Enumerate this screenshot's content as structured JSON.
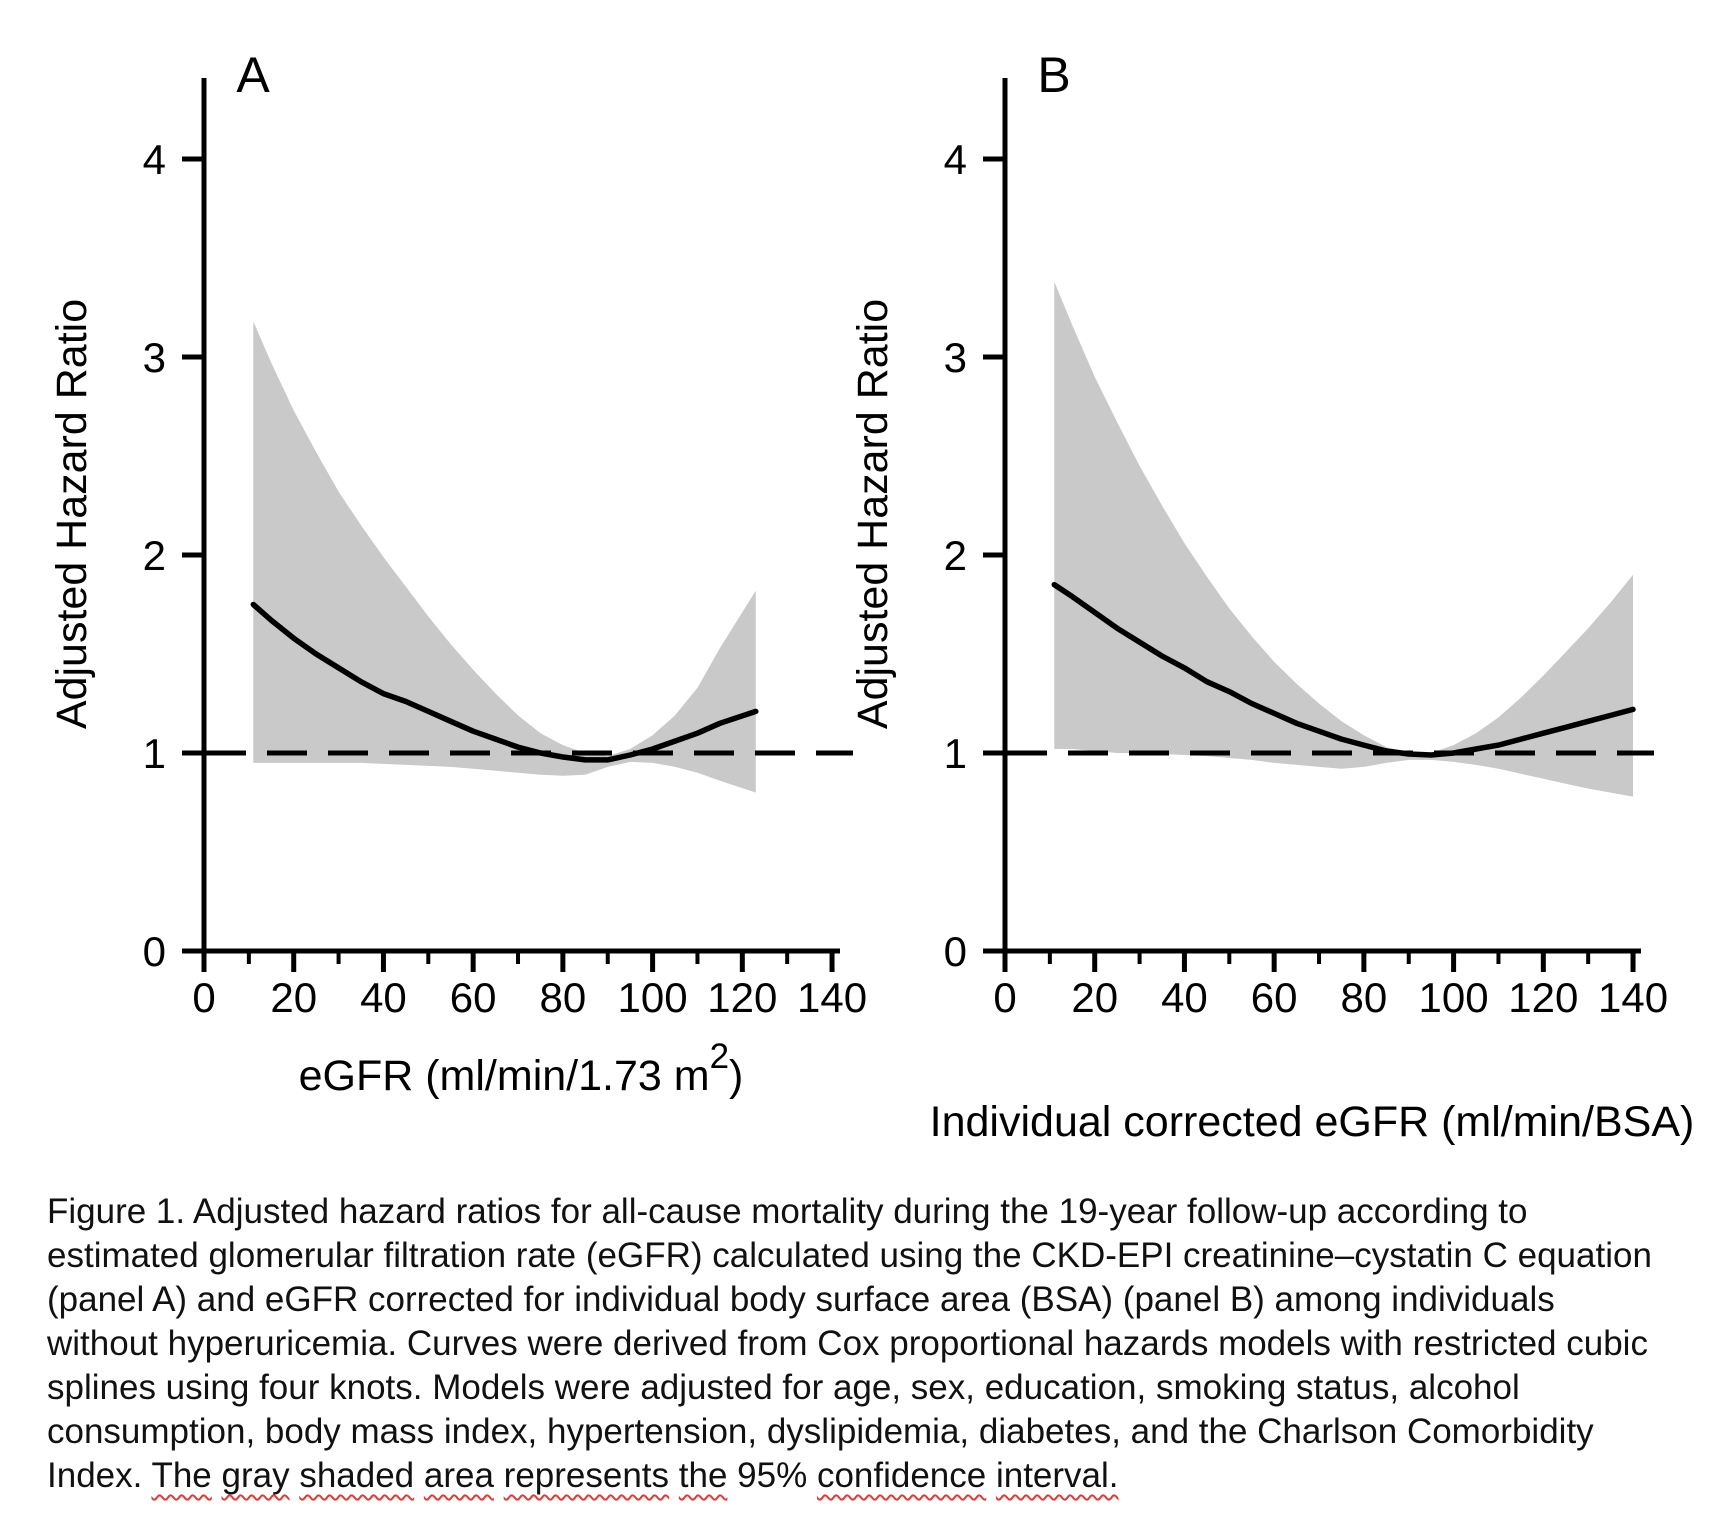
{
  "figure": {
    "band_color": "#c9c9c9",
    "line_color": "#000000",
    "background": "#ffffff"
  },
  "chart_data": [
    {
      "type": "line",
      "panel_label": "A",
      "title": "A",
      "ylabel": "Adjusted Hazard Ratio",
      "xlabel": {
        "pre": "eGFR (ml/min/1.73 m",
        "sup": "2",
        "post": ")"
      },
      "xlim": [
        0,
        145
      ],
      "ylim": [
        0,
        4.4
      ],
      "xticks_major": [
        0,
        20,
        40,
        60,
        80,
        100,
        120,
        140
      ],
      "xticks_minor": [
        10,
        30,
        50,
        70,
        90,
        110,
        130
      ],
      "yticks": [
        0,
        1,
        2,
        3,
        4
      ],
      "ref_line": 1,
      "legend": "none",
      "grid": false,
      "band_meaning": "95% confidence interval",
      "series": {
        "x": [
          11,
          15,
          20,
          25,
          30,
          35,
          40,
          45,
          50,
          55,
          60,
          65,
          70,
          75,
          80,
          85,
          90,
          95,
          100,
          105,
          110,
          115,
          123
        ],
        "hr": [
          1.75,
          1.67,
          1.58,
          1.5,
          1.43,
          1.36,
          1.3,
          1.26,
          1.21,
          1.16,
          1.11,
          1.07,
          1.03,
          1.0,
          0.98,
          0.965,
          0.965,
          0.99,
          1.02,
          1.06,
          1.1,
          1.15,
          1.21
        ],
        "upper": [
          3.18,
          2.97,
          2.73,
          2.52,
          2.32,
          2.15,
          1.99,
          1.84,
          1.69,
          1.55,
          1.42,
          1.3,
          1.19,
          1.1,
          1.04,
          1.0,
          0.985,
          1.02,
          1.09,
          1.19,
          1.33,
          1.53,
          1.82
        ],
        "lower": [
          0.95,
          0.95,
          0.95,
          0.95,
          0.95,
          0.95,
          0.945,
          0.94,
          0.935,
          0.93,
          0.92,
          0.91,
          0.9,
          0.89,
          0.885,
          0.89,
          0.93,
          0.955,
          0.95,
          0.93,
          0.9,
          0.86,
          0.8
        ]
      }
    },
    {
      "type": "line",
      "panel_label": "B",
      "title": "B",
      "ylabel": "Adjusted Hazard Ratio",
      "xlabel": {
        "pre": "Individual corrected eGFR (ml/min/BSA)",
        "sup": "",
        "post": ""
      },
      "xlim": [
        0,
        145
      ],
      "ylim": [
        0,
        4.4
      ],
      "xticks_major": [
        0,
        20,
        40,
        60,
        80,
        100,
        120,
        140
      ],
      "xticks_minor": [
        10,
        30,
        50,
        70,
        90,
        110,
        130
      ],
      "yticks": [
        0,
        1,
        2,
        3,
        4
      ],
      "ref_line": 1,
      "legend": "none",
      "grid": false,
      "band_meaning": "95% confidence interval",
      "series": {
        "x": [
          11,
          15,
          20,
          25,
          30,
          35,
          40,
          45,
          50,
          55,
          60,
          65,
          70,
          75,
          80,
          85,
          90,
          95,
          100,
          105,
          110,
          115,
          120,
          125,
          130,
          135,
          140
        ],
        "hr": [
          1.85,
          1.79,
          1.71,
          1.63,
          1.56,
          1.49,
          1.43,
          1.36,
          1.31,
          1.25,
          1.2,
          1.15,
          1.11,
          1.07,
          1.04,
          1.01,
          0.995,
          0.99,
          1.0,
          1.02,
          1.04,
          1.07,
          1.1,
          1.13,
          1.16,
          1.19,
          1.22
        ],
        "upper": [
          3.38,
          3.16,
          2.9,
          2.67,
          2.45,
          2.25,
          2.06,
          1.89,
          1.73,
          1.59,
          1.46,
          1.35,
          1.25,
          1.16,
          1.09,
          1.03,
          1.0,
          1.0,
          1.04,
          1.1,
          1.18,
          1.28,
          1.39,
          1.51,
          1.63,
          1.76,
          1.9
        ],
        "lower": [
          1.02,
          1.02,
          1.01,
          1.0,
          1.0,
          0.995,
          0.99,
          0.985,
          0.975,
          0.965,
          0.95,
          0.94,
          0.93,
          0.92,
          0.93,
          0.95,
          0.965,
          0.965,
          0.955,
          0.94,
          0.92,
          0.895,
          0.87,
          0.845,
          0.82,
          0.8,
          0.78
        ]
      }
    }
  ],
  "caption": {
    "squiggle_color": "#e53935",
    "lines": [
      "Figure 1. Adjusted hazard ratios for all-cause mortality during the 19-year follow-up according to",
      "estimated glomerular filtration rate (eGFR) calculated using the CKD-EPI creatinine–cystatin C equation",
      "(panel A) and eGFR corrected for individual body surface area (BSA) (panel B) among individuals",
      "without hyperuricemia. Curves were derived from Cox proportional hazards models with restricted cubic",
      "splines using four knots. Models were adjusted for age, sex, education, smoking status, alcohol",
      "consumption, body mass index, hypertension, dyslipidemia, diabetes, and the Charlson Comorbidity",
      "Index. "
    ],
    "last_line_tokens": [
      {
        "t": "Index. ",
        "sq": false
      },
      {
        "t": "The",
        "sq": true
      },
      {
        "t": " ",
        "sq": false
      },
      {
        "t": "gray",
        "sq": true
      },
      {
        "t": " ",
        "sq": false
      },
      {
        "t": "shaded",
        "sq": true
      },
      {
        "t": " ",
        "sq": false
      },
      {
        "t": "area",
        "sq": true
      },
      {
        "t": " ",
        "sq": false
      },
      {
        "t": "represents",
        "sq": true
      },
      {
        "t": " ",
        "sq": false
      },
      {
        "t": "the",
        "sq": true
      },
      {
        "t": " 95% ",
        "sq": false
      },
      {
        "t": "confidence",
        "sq": true
      },
      {
        "t": " ",
        "sq": false
      },
      {
        "t": "interval.",
        "sq": true
      }
    ]
  }
}
